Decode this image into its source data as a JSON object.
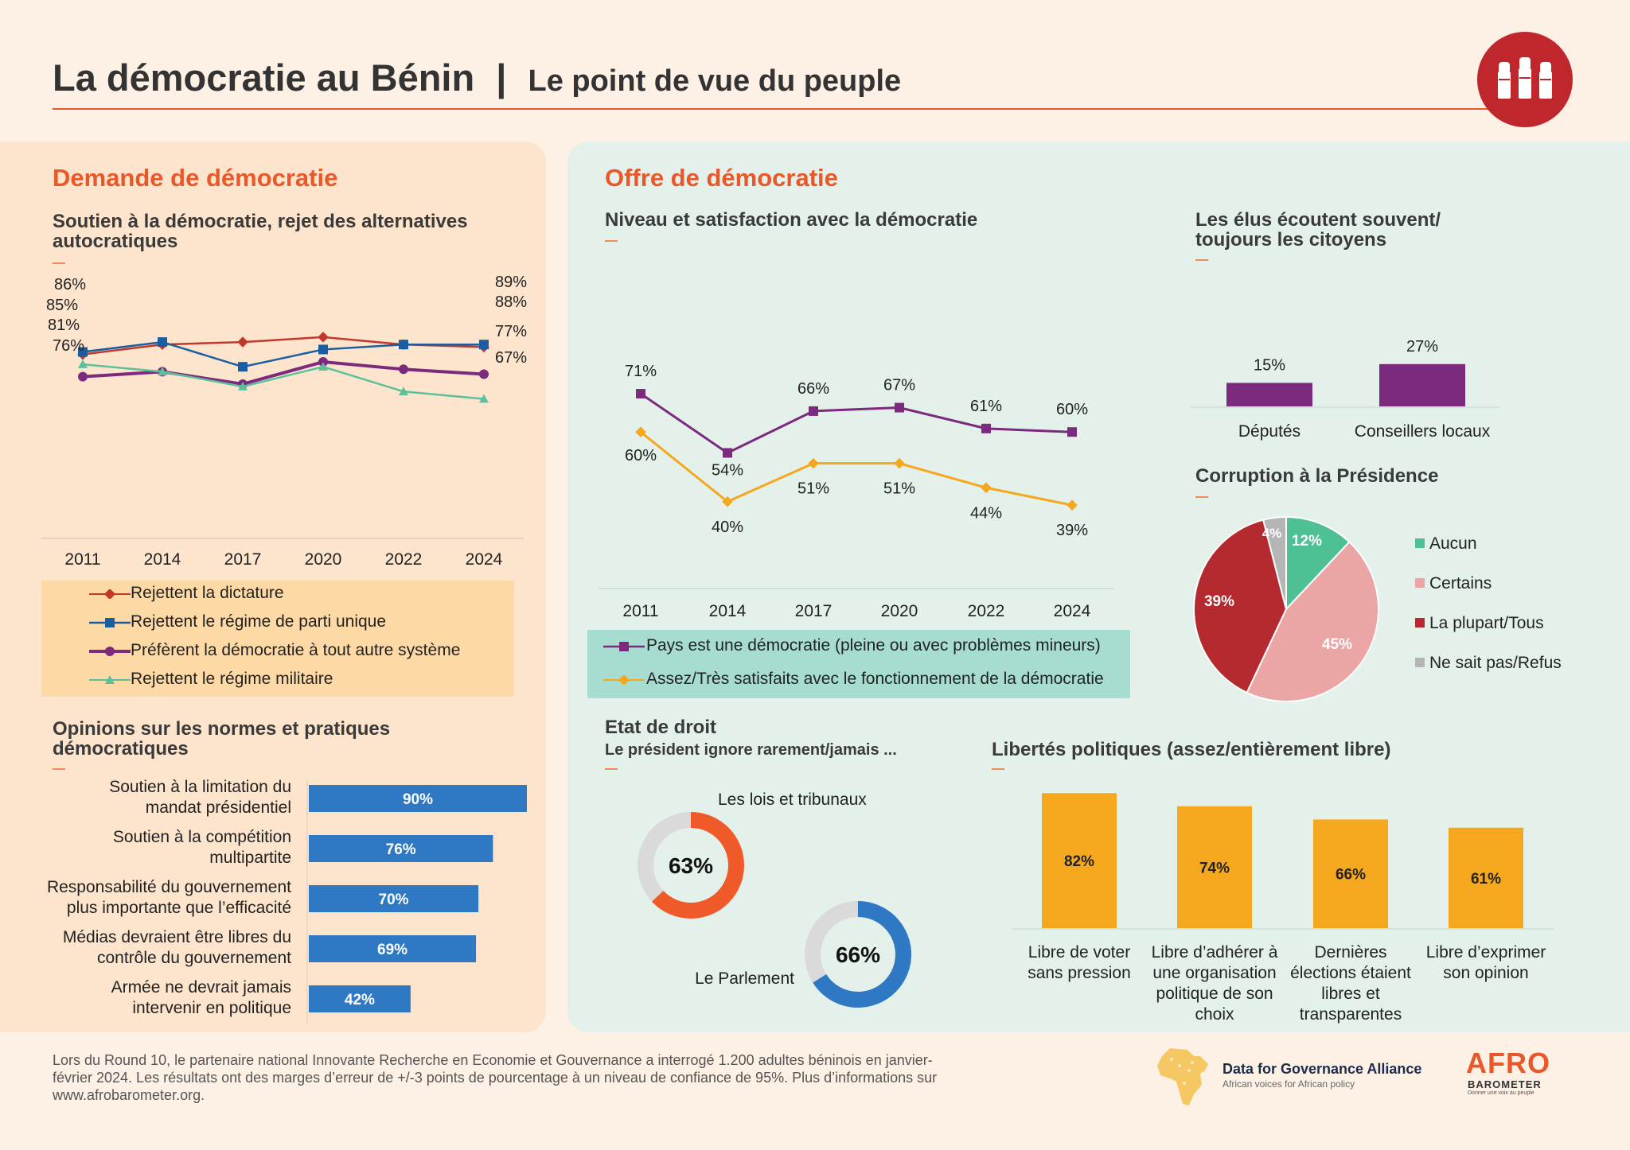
{
  "header": {
    "title": "La démocratie au Bénin",
    "separator": "|",
    "subtitle": "Le point de vue du peuple"
  },
  "left": {
    "section_title": "Demande de démocratie",
    "chart1_title": "Soutien à la démocratie, rejet des alternatives autocratiques",
    "chart2_title": "Opinions sur les normes et pratiques démocratiques"
  },
  "right": {
    "section_title": "Offre de démocratie",
    "chart3_title": "Niveau et satisfaction avec la démocratie",
    "chart4_title": "Les élus écoutent souvent/ toujours les citoyens",
    "chart5_title": "Corruption à la Présidence",
    "chart6_title": "Etat de droit",
    "chart6_subtitle": "Le président ignore rarement/jamais ...",
    "chart7_title": "Libertés politiques (assez/entièrement libre)"
  },
  "footer": {
    "note": "Lors du Round 10, le partenaire national Innovante Recherche en Economie et Gouvernance a interrogé 1.200 adultes béninois en janvier-février 2024. Les résultats ont des marges d’erreur de +/-3 points de pourcentage à un niveau de confiance de 95%. Plus d’informations sur www.afrobarometer.org.",
    "dga_name": "Data for Governance Alliance",
    "dga_tagline": "African voices for African policy",
    "afro_name_1": "AFRO",
    "afro_name_2": "BAROMETER",
    "afro_tagline": "Donner une voix au peuple"
  },
  "colors": {
    "orange_title": "#e8582a",
    "red": "#c0392b",
    "blue": "#1a5da0",
    "purple": "#7b2a7e",
    "green": "#5cc09a",
    "bar_blue": "#2f78c4",
    "yellow": "#f5a71d",
    "pie_green": "#4fbf94",
    "pie_pink": "#eba5a5",
    "pie_red": "#b52a2f",
    "pie_grey": "#b5b5b5"
  },
  "chart_data": [
    {
      "type": "line",
      "title": "Soutien à la démocratie, rejet des alternatives autocratiques",
      "x": [
        "2011",
        "2014",
        "2017",
        "2020",
        "2022",
        "2024"
      ],
      "series": [
        {
          "name": "Rejettent la dictature",
          "values": [
            85,
            89,
            90,
            92,
            89,
            88
          ],
          "color": "#c0392b",
          "marker": "diamond"
        },
        {
          "name": "Rejettent le régime de parti unique",
          "values": [
            86,
            90,
            80,
            87,
            89,
            89
          ],
          "color": "#1a5da0",
          "marker": "square"
        },
        {
          "name": "Préfèrent la démocratie à tout autre système",
          "values": [
            76,
            78,
            73,
            82,
            79,
            77
          ],
          "color": "#7b2a7e",
          "marker": "circle"
        },
        {
          "name": "Rejettent le régime militaire",
          "values": [
            81,
            78,
            72,
            80,
            70,
            67
          ],
          "color": "#5cc09a",
          "marker": "triangle"
        }
      ],
      "data_labels": {
        "first": [
          "86%",
          "85%",
          "81%",
          "76%"
        ],
        "last": [
          "89%",
          "88%",
          "77%",
          "67%"
        ]
      },
      "ylim": [
        0,
        100
      ]
    },
    {
      "type": "bar",
      "orientation": "horizontal",
      "title": "Opinions sur les normes et pratiques démocratiques",
      "categories": [
        "Soutien à la limitation du mandat présidentiel",
        "Soutien à la compétition multipartite",
        "Responsabilité du gouvernement plus importante que l’efficacité",
        "Médias devraient être libres du contrôle du gouvernement",
        "Armée ne devrait jamais intervenir en politique"
      ],
      "category_lines": [
        [
          "Soutien à la limitation du",
          "mandat présidentiel"
        ],
        [
          "Soutien à la compétition",
          "multipartite"
        ],
        [
          "Responsabilité du gouvernement",
          "plus importante que l’efficacité"
        ],
        [
          "Médias devraient être libres du",
          "contrôle du gouvernement"
        ],
        [
          "Armée ne devrait jamais",
          "intervenir en politique"
        ]
      ],
      "values": [
        90,
        76,
        70,
        69,
        42
      ],
      "labels": [
        "90%",
        "76%",
        "70%",
        "69%",
        "42%"
      ],
      "xlim": [
        0,
        90
      ]
    },
    {
      "type": "line",
      "title": "Niveau et satisfaction avec la démocratie",
      "x": [
        "2011",
        "2014",
        "2017",
        "2020",
        "2022",
        "2024"
      ],
      "series": [
        {
          "name": "Pays est une démocratie (pleine ou avec problèmes mineurs)",
          "values": [
            71,
            54,
            66,
            67,
            61,
            60
          ],
          "labels": [
            "71%",
            "54%",
            "66%",
            "67%",
            "61%",
            "60%"
          ],
          "color": "#7b2a7e",
          "marker": "square"
        },
        {
          "name": "Assez/Très satisfaits avec le fonctionnement de la démocratie",
          "values": [
            60,
            40,
            51,
            51,
            44,
            39
          ],
          "labels": [
            "60%",
            "40%",
            "51%",
            "51%",
            "44%",
            "39%"
          ],
          "color": "#f5a71d",
          "marker": "diamond"
        }
      ]
    },
    {
      "type": "bar",
      "title": "Les élus écoutent souvent/ toujours les citoyens",
      "categories": [
        "Députés",
        "Conseillers locaux"
      ],
      "values": [
        15,
        27
      ],
      "labels": [
        "15%",
        "27%"
      ]
    },
    {
      "type": "pie",
      "title": "Corruption à la Présidence",
      "slices": [
        {
          "name": "Aucun",
          "value": 12,
          "label": "12%",
          "color": "#4fbf94"
        },
        {
          "name": "Certains",
          "value": 45,
          "label": "45%",
          "color": "#eba5a5"
        },
        {
          "name": "La plupart/Tous",
          "value": 39,
          "label": "39%",
          "color": "#b52a2f"
        },
        {
          "name": "Ne sait pas/Refus",
          "value": 4,
          "label": "4%",
          "color": "#b5b5b5"
        }
      ]
    },
    {
      "type": "pie",
      "variant": "donut",
      "title": "Etat de droit",
      "subtitle": "Le président ignore rarement/jamais ...",
      "items": [
        {
          "name": "Les lois et tribunaux",
          "value": 63,
          "label": "63%",
          "color": "#f05a28"
        },
        {
          "name": "Le Parlement",
          "value": 66,
          "label": "66%",
          "color": "#2f78c4"
        }
      ]
    },
    {
      "type": "bar",
      "title": "Libertés politiques (assez/entièrement libre)",
      "categories": [
        "Libre de voter sans pression",
        "Libre d’adhérer à une organisation politique de son choix",
        "Dernières élections étaient libres et transparentes",
        "Libre d’exprimer son opinion"
      ],
      "category_lines": [
        [
          "Libre de voter",
          "sans pression"
        ],
        [
          "Libre d’adhérer à",
          "une organisation",
          "politique de son",
          "choix"
        ],
        [
          "Dernières",
          "élections étaient",
          "libres et",
          "transparentes"
        ],
        [
          "Libre d’exprimer",
          "son opinion"
        ]
      ],
      "values": [
        82,
        74,
        66,
        61
      ],
      "labels": [
        "82%",
        "74%",
        "66%",
        "61%"
      ]
    }
  ]
}
